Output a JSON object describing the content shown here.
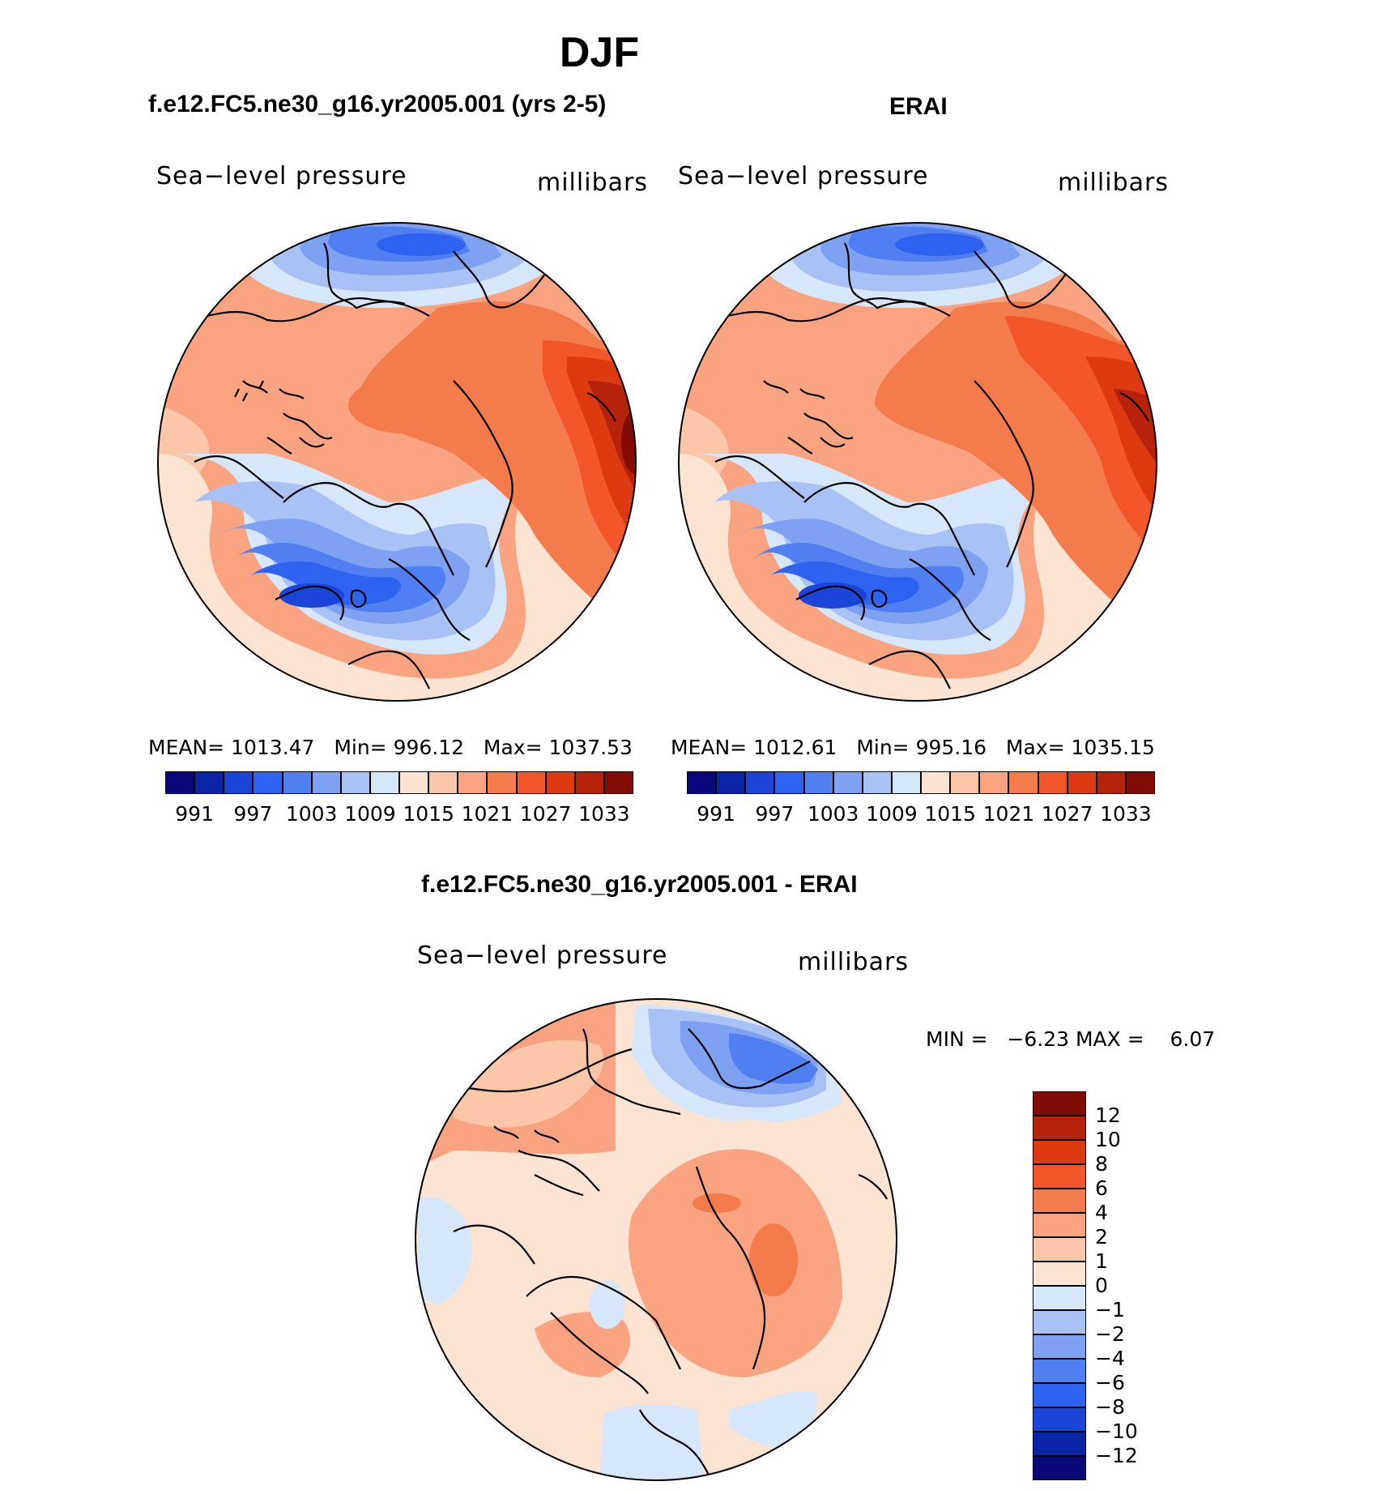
{
  "title": "DJF",
  "panels": [
    {
      "heading": "f.e12.FC5.ne30_g16.yr2005.001 (yrs 2-5)",
      "left_label": "Sea−level pressure",
      "right_label": "millibars",
      "stats": {
        "mean_label": "MEAN=",
        "mean": "1013.47",
        "min_label": "Min=",
        "min": "996.12",
        "max_label": "Max=",
        "max": "1037.53"
      }
    },
    {
      "heading": "ERAI",
      "left_label": "Sea−level pressure",
      "right_label": "millibars",
      "stats": {
        "mean_label": "MEAN=",
        "mean": "1012.61",
        "min_label": "Min=",
        "min": "995.16",
        "max_label": "Max=",
        "max": "1035.15"
      }
    }
  ],
  "abs_colorbar": {
    "colors": [
      "#08087a",
      "#0a24a8",
      "#1a45d8",
      "#2e62f0",
      "#4f7ff0",
      "#7ea1f2",
      "#a9c2f6",
      "#d6e6fb",
      "#fde4d2",
      "#fcc6a8",
      "#f9a380",
      "#f47c4c",
      "#f2562a",
      "#dd3a12",
      "#b7220b",
      "#830c05"
    ],
    "ticks": [
      "991",
      "997",
      "1003",
      "1009",
      "1015",
      "1021",
      "1027",
      "1033"
    ]
  },
  "diff_panel": {
    "heading": "f.e12.FC5.ne30_g16.yr2005.001 - ERAI",
    "left_label": "Sea−level pressure",
    "right_label": "millibars",
    "min_label": "MIN =",
    "min": "−6.23",
    "max_label": "MAX =",
    "max": "6.07"
  },
  "diff_colorbar": {
    "colors": [
      "#830c05",
      "#b7220b",
      "#dd3a12",
      "#f2562a",
      "#f47c4c",
      "#f9a380",
      "#fcc6a8",
      "#fde4d2",
      "#d6e6fb",
      "#a9c2f6",
      "#7ea1f2",
      "#4f7ff0",
      "#2e62f0",
      "#1a45d8",
      "#0a24a8",
      "#08087a"
    ],
    "ticks": [
      "12",
      "10",
      "8",
      "6",
      "4",
      "2",
      "1",
      "0",
      "−1",
      "−2",
      "−4",
      "−6",
      "−8",
      "−10",
      "−12"
    ]
  }
}
